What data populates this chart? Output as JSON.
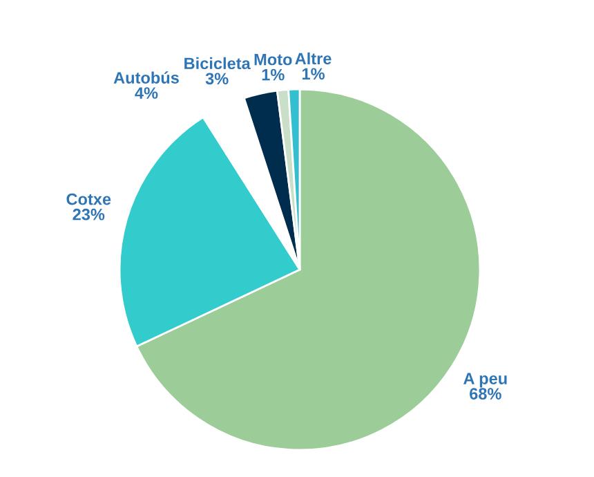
{
  "chart_data": {
    "type": "pie",
    "categories": [
      "A peu",
      "Cotxe",
      "Autobús",
      "Bicicleta",
      "Moto",
      "Altre"
    ],
    "values": [
      68,
      23,
      4,
      3,
      1,
      1
    ],
    "value_labels": [
      "68%",
      "23%",
      "4%",
      "3%",
      "1%",
      "1%"
    ],
    "colors": [
      "#9ccc98",
      "#33cccc",
      "#ffffff",
      "#002c4e",
      "#c9dfc9",
      "#33bfcf"
    ]
  }
}
